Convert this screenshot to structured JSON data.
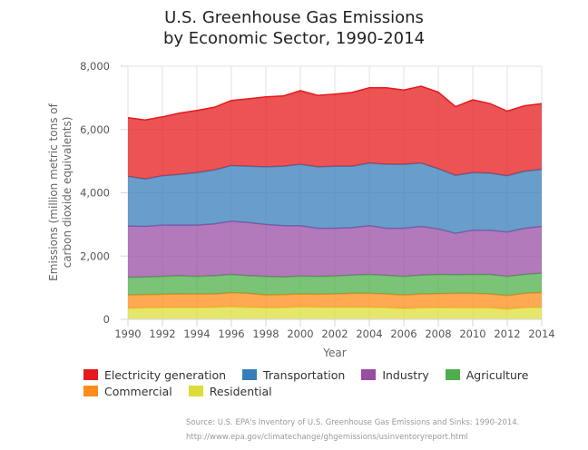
{
  "chart_data": {
    "type": "area",
    "stacked": true,
    "title": "U.S. Greenhouse Gas Emissions",
    "subtitle": "by Economic Sector, 1990-2014",
    "xlabel": "Year",
    "ylabel": "Emissions (million metric tons of carbon dioxide equivalents)",
    "ylabel_lines": [
      "Emissions (million metric tons of",
      "carbon dioxide equivalents)"
    ],
    "ylim": [
      0,
      8000
    ],
    "yticks": [
      0,
      2000,
      4000,
      6000,
      8000
    ],
    "ytick_labels": [
      "0",
      "2,000",
      "4,000",
      "6,000",
      "8,000"
    ],
    "xlim": [
      1990,
      2014
    ],
    "xticks": [
      1990,
      1992,
      1994,
      1996,
      1998,
      2000,
      2002,
      2004,
      2006,
      2008,
      2010,
      2012,
      2014
    ],
    "xtick_labels": [
      "1990",
      "1992",
      "1994",
      "1996",
      "1998",
      "2000",
      "2002",
      "2004",
      "2006",
      "2008",
      "2010",
      "2012",
      "2014"
    ],
    "grid": true,
    "legend_position": "bottom",
    "x": [
      1990,
      1991,
      1992,
      1993,
      1994,
      1995,
      1996,
      1997,
      1998,
      1999,
      2000,
      2001,
      2002,
      2003,
      2004,
      2005,
      2006,
      2007,
      2008,
      2009,
      2010,
      2011,
      2012,
      2013,
      2014
    ],
    "series": [
      {
        "name": "Residential",
        "color": "#dddd3a",
        "values": [
          350,
          360,
          370,
          370,
          370,
          380,
          400,
          380,
          360,
          370,
          390,
          380,
          380,
          380,
          380,
          370,
          340,
          360,
          370,
          360,
          360,
          360,
          320,
          370,
          380
        ]
      },
      {
        "name": "Commercial",
        "color": "#ff8c1a",
        "values": [
          420,
          420,
          420,
          430,
          430,
          420,
          440,
          440,
          410,
          410,
          410,
          410,
          420,
          440,
          440,
          430,
          430,
          440,
          440,
          460,
          460,
          440,
          430,
          450,
          470
        ]
      },
      {
        "name": "Agriculture",
        "color": "#4daf4a",
        "values": [
          560,
          560,
          570,
          580,
          560,
          580,
          580,
          560,
          590,
          560,
          570,
          570,
          570,
          580,
          600,
          590,
          590,
          600,
          610,
          590,
          600,
          620,
          610,
          600,
          610
        ]
      },
      {
        "name": "Industry",
        "color": "#984ea3",
        "values": [
          1620,
          1600,
          1620,
          1600,
          1620,
          1640,
          1680,
          1680,
          1640,
          1620,
          1590,
          1520,
          1510,
          1500,
          1540,
          1490,
          1520,
          1540,
          1440,
          1310,
          1400,
          1400,
          1400,
          1460,
          1480
        ]
      },
      {
        "name": "Transportation",
        "color": "#377eb8",
        "values": [
          1570,
          1500,
          1560,
          1600,
          1660,
          1700,
          1760,
          1780,
          1820,
          1880,
          1940,
          1940,
          1960,
          1940,
          1980,
          2020,
          2020,
          2000,
          1900,
          1830,
          1820,
          1800,
          1780,
          1800,
          1800
        ]
      },
      {
        "name": "Electricity generation",
        "color": "#e41a1c",
        "values": [
          1850,
          1860,
          1860,
          1940,
          1960,
          1980,
          2060,
          2130,
          2210,
          2220,
          2330,
          2260,
          2280,
          2330,
          2380,
          2420,
          2350,
          2430,
          2420,
          2170,
          2300,
          2200,
          2040,
          2070,
          2080
        ]
      }
    ],
    "legend_order": [
      "Electricity generation",
      "Transportation",
      "Industry",
      "Agriculture",
      "Commercial",
      "Residential"
    ]
  },
  "source": {
    "line1": "Source: U.S. EPA's Inventory of U.S. Greenhouse Gas Emissions and Sinks: 1990-2014.",
    "line2": "http://www.epa.gov/climatechange/ghgemissions/usinventoryreport.html"
  }
}
